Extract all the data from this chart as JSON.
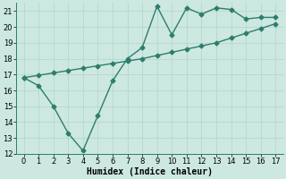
{
  "line1_x": [
    0,
    1,
    2,
    3,
    4,
    5,
    6,
    7,
    8,
    9,
    10,
    11,
    12,
    13,
    14,
    15,
    16,
    17
  ],
  "line1_y": [
    16.8,
    16.3,
    15.0,
    13.3,
    12.2,
    14.4,
    16.6,
    18.0,
    18.7,
    21.3,
    19.5,
    21.2,
    20.8,
    21.2,
    21.1,
    20.5,
    20.6,
    20.6
  ],
  "line2_x": [
    0,
    1,
    2,
    3,
    4,
    5,
    6,
    7,
    8,
    9,
    10,
    11,
    12,
    13,
    14,
    15,
    16,
    17
  ],
  "line2_y": [
    16.8,
    16.95,
    17.1,
    17.25,
    17.4,
    17.55,
    17.7,
    17.85,
    18.0,
    18.2,
    18.4,
    18.6,
    18.8,
    19.0,
    19.3,
    19.6,
    19.9,
    20.2
  ],
  "line_color": "#2d7d6d",
  "bg_color": "#cce8e0",
  "grid_color": "#b0d4cc",
  "xlabel": "Humidex (Indice chaleur)",
  "ylim": [
    12,
    21.5
  ],
  "xlim": [
    -0.5,
    17.5
  ],
  "yticks": [
    12,
    13,
    14,
    15,
    16,
    17,
    18,
    19,
    20,
    21
  ],
  "xticks": [
    0,
    1,
    2,
    3,
    4,
    5,
    6,
    7,
    8,
    9,
    10,
    11,
    12,
    13,
    14,
    15,
    16,
    17
  ],
  "marker": "D",
  "markersize": 2.5,
  "linewidth": 1.0,
  "xlabel_fontsize": 7,
  "tick_fontsize": 6
}
